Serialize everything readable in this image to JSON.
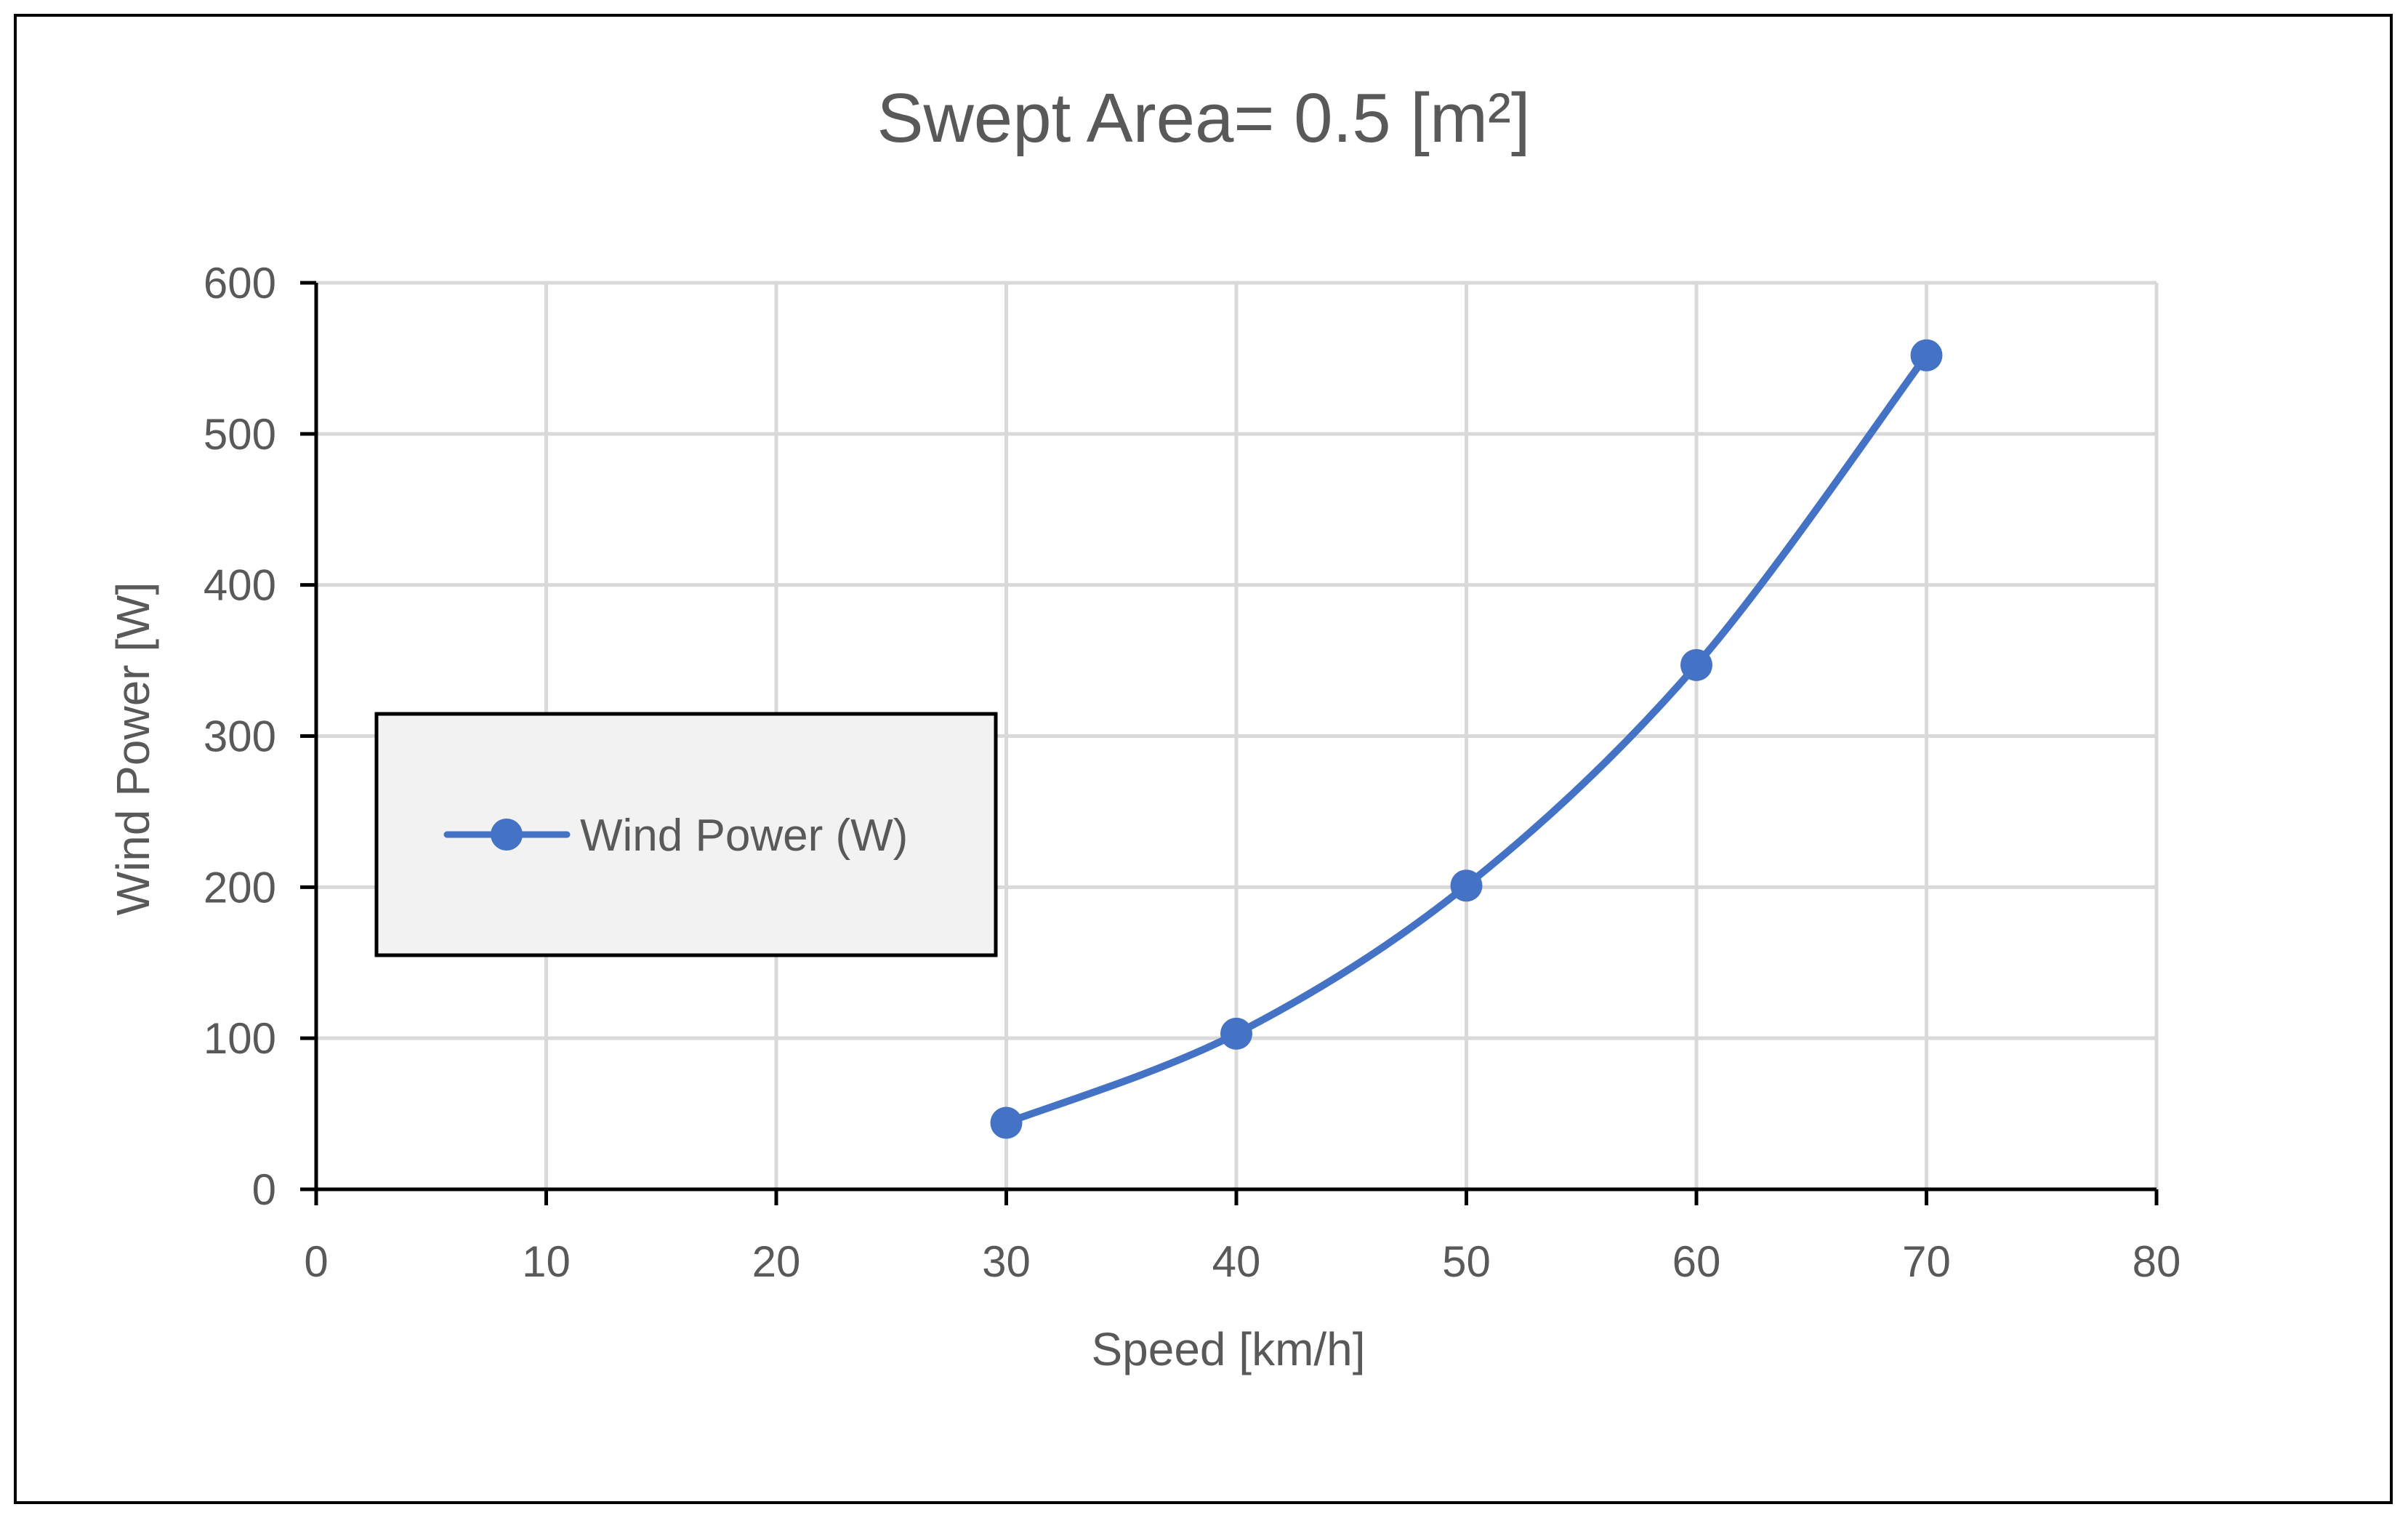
{
  "chart_data": {
    "type": "line",
    "title": "Swept Area= 0.5 [m²]",
    "xlabel": "Speed [km/h]",
    "ylabel": "Wind Power [W]",
    "xlim": [
      0,
      80
    ],
    "ylim": [
      0,
      600
    ],
    "xticks": [
      0,
      10,
      20,
      30,
      40,
      50,
      60,
      70,
      80
    ],
    "yticks": [
      0,
      100,
      200,
      300,
      400,
      500,
      600
    ],
    "grid": true,
    "smooth": true,
    "legend_position": "left-middle",
    "series": [
      {
        "name": "Wind Power (W)",
        "color": "#4472C4",
        "x": [
          30,
          40,
          50,
          60,
          70
        ],
        "y": [
          44,
          103,
          201,
          347,
          552
        ]
      }
    ]
  }
}
